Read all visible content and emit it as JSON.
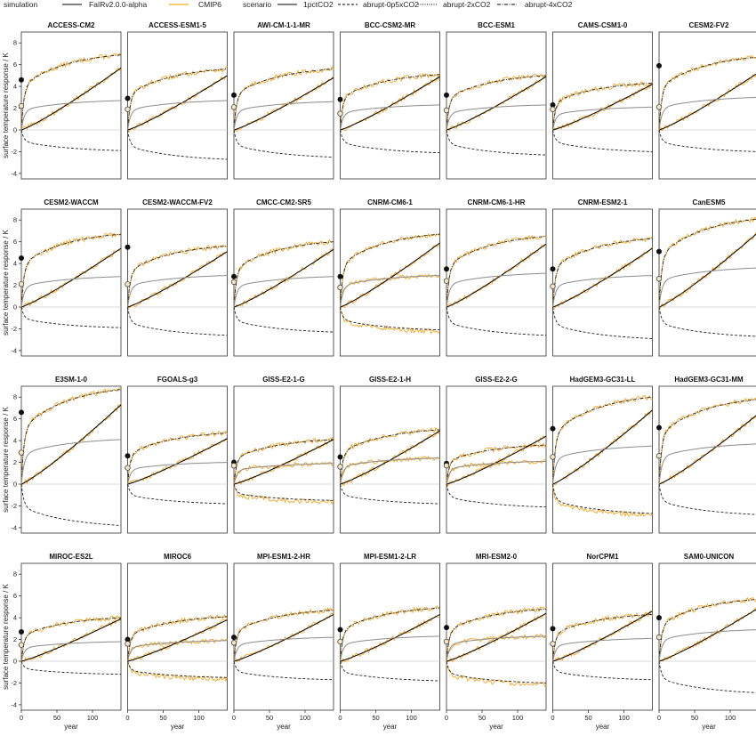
{
  "legend": {
    "simulation_title": "simulation",
    "scenario_title": "scenario",
    "simulation_items": [
      {
        "label": "FaIRv2.0.0-alpha",
        "color": "#000000"
      },
      {
        "label": "CMIP6",
        "color": "#f5a623"
      }
    ],
    "scenario_items": [
      {
        "label": "1pctCO2",
        "dash": "solid"
      },
      {
        "label": "abrupt-0p5xCO2",
        "dash": "dashed"
      },
      {
        "label": "abrupt-2xCO2",
        "dash": "dotted"
      },
      {
        "label": "abrupt-4xCO2",
        "dash": "dotdash"
      }
    ]
  },
  "chart_data": {
    "type": "line",
    "ylabel": "surface temperature response / K",
    "xlabel": "year",
    "xlim": [
      0,
      140
    ],
    "ylim": [
      -4.5,
      9
    ],
    "xticks": [
      0,
      50,
      100
    ],
    "yticks": [
      -4,
      -2,
      0,
      2,
      4,
      6,
      8
    ],
    "colors": {
      "fair": "#000000",
      "cmip6": "#f5a623",
      "twox": "#8c8c8c",
      "zero": "#cccccc"
    },
    "legend_position": "top",
    "panels": [
      {
        "model": "ACCESS-CM2",
        "dot4x": 4.6,
        "dot2x": 2.2,
        "f4x": 6.9,
        "f2x": 2.7,
        "fpct": 5.7,
        "fhalf": -1.9,
        "cmip2x": false,
        "cmiphalf": false
      },
      {
        "model": "ACCESS-ESM1-5",
        "dot4x": 2.9,
        "dot2x": 1.9,
        "f4x": 5.6,
        "f2x": 2.7,
        "fpct": 5.0,
        "fhalf": -2.7,
        "cmip2x": false,
        "cmiphalf": false
      },
      {
        "model": "AWI-CM-1-1-MR",
        "dot4x": 3.2,
        "dot2x": 2.1,
        "f4x": 5.6,
        "f2x": 2.6,
        "fpct": 4.8,
        "fhalf": -2.5,
        "cmip2x": false,
        "cmiphalf": false
      },
      {
        "model": "BCC-CSM2-MR",
        "dot4x": 2.8,
        "dot2x": 1.5,
        "f4x": 5.1,
        "f2x": 2.3,
        "fpct": 4.9,
        "fhalf": -2.1,
        "cmip2x": false,
        "cmiphalf": false
      },
      {
        "model": "BCC-ESM1",
        "dot4x": 3.2,
        "dot2x": 1.8,
        "f4x": 5.0,
        "f2x": 2.3,
        "fpct": 4.9,
        "fhalf": -2.3,
        "cmip2x": false,
        "cmiphalf": false
      },
      {
        "model": "CAMS-CSM1-0",
        "dot4x": 2.3,
        "dot2x": 1.9,
        "f4x": 4.3,
        "f2x": 2.1,
        "fpct": 4.2,
        "fhalf": -2.0,
        "cmip2x": false,
        "cmiphalf": false
      },
      {
        "model": "CESM2-FV2",
        "dot4x": 5.9,
        "dot2x": 2.1,
        "f4x": 6.7,
        "f2x": 3.0,
        "fpct": 5.3,
        "fhalf": -2.0,
        "cmip2x": false,
        "cmiphalf": false
      },
      {
        "model": "CESM2-WACCM",
        "dot4x": 4.5,
        "dot2x": 2.1,
        "f4x": 6.7,
        "f2x": 2.8,
        "fpct": 5.4,
        "fhalf": -1.9,
        "cmip2x": false,
        "cmiphalf": false
      },
      {
        "model": "CESM2-WACCM-FV2",
        "dot4x": 5.5,
        "dot2x": 2.1,
        "f4x": 5.6,
        "f2x": 2.9,
        "fpct": 5.1,
        "fhalf": -2.6,
        "cmip2x": false,
        "cmiphalf": false
      },
      {
        "model": "CMCC-CM2-SR5",
        "dot4x": 2.8,
        "dot2x": 2.3,
        "f4x": 6.0,
        "f2x": 2.8,
        "fpct": 5.3,
        "fhalf": -2.3,
        "cmip2x": false,
        "cmiphalf": false
      },
      {
        "model": "CNRM-CM6-1",
        "dot4x": 2.8,
        "dot2x": 1.8,
        "f4x": 6.7,
        "f2x": 2.9,
        "fpct": 5.9,
        "fhalf": -2.1,
        "cmip2x": true,
        "cmiphalf": true
      },
      {
        "model": "CNRM-CM6-1-HR",
        "dot4x": 3.5,
        "dot2x": 2.4,
        "f4x": 6.5,
        "f2x": 3.1,
        "fpct": 5.8,
        "fhalf": -2.6,
        "cmip2x": false,
        "cmiphalf": false
      },
      {
        "model": "CNRM-ESM2-1",
        "dot4x": 3.5,
        "dot2x": 1.9,
        "f4x": 6.3,
        "f2x": 2.9,
        "fpct": 5.4,
        "fhalf": -2.9,
        "cmip2x": false,
        "cmiphalf": false
      },
      {
        "model": "CanESM5",
        "dot4x": 5.1,
        "dot2x": 2.6,
        "f4x": 8.1,
        "f2x": 3.6,
        "fpct": 6.9,
        "fhalf": -2.7,
        "cmip2x": false,
        "cmiphalf": false
      },
      {
        "model": "E3SM-1-0",
        "dot4x": 6.6,
        "dot2x": 2.9,
        "f4x": 8.7,
        "f2x": 4.1,
        "fpct": 7.3,
        "fhalf": -3.8,
        "cmip2x": false,
        "cmiphalf": false
      },
      {
        "model": "FGOALS-g3",
        "dot4x": 2.6,
        "dot2x": 1.5,
        "f4x": 4.7,
        "f2x": 2.0,
        "fpct": 4.2,
        "fhalf": -1.8,
        "cmip2x": false,
        "cmiphalf": false
      },
      {
        "model": "GISS-E2-1-G",
        "dot4x": 2.0,
        "dot2x": 1.7,
        "f4x": 4.1,
        "f2x": 1.9,
        "fpct": 4.1,
        "fhalf": -1.5,
        "cmip2x": true,
        "cmiphalf": true
      },
      {
        "model": "GISS-E2-1-H",
        "dot4x": 2.5,
        "dot2x": 1.6,
        "f4x": 5.0,
        "f2x": 2.4,
        "fpct": 4.9,
        "fhalf": -1.8,
        "cmip2x": true,
        "cmiphalf": false
      },
      {
        "model": "GISS-E2-2-G",
        "dot4x": 1.9,
        "dot2x": 1.7,
        "f4x": 3.6,
        "f2x": 2.1,
        "fpct": 4.4,
        "fhalf": -2.1,
        "cmip2x": true,
        "cmiphalf": false
      },
      {
        "model": "HadGEM3-GC31-LL",
        "dot4x": 5.1,
        "dot2x": 2.5,
        "f4x": 8.0,
        "f2x": 3.5,
        "fpct": 6.8,
        "fhalf": -2.7,
        "cmip2x": false,
        "cmiphalf": true
      },
      {
        "model": "HadGEM3-GC31-MM",
        "dot4x": 5.2,
        "dot2x": 2.6,
        "f4x": 7.8,
        "f2x": 3.7,
        "fpct": 6.5,
        "fhalf": -2.8,
        "cmip2x": false,
        "cmiphalf": false
      },
      {
        "model": "MIROC-ES2L",
        "dot4x": 2.7,
        "dot2x": 1.5,
        "f4x": 4.0,
        "f2x": 1.8,
        "fpct": 3.9,
        "fhalf": -1.2,
        "cmip2x": false,
        "cmiphalf": false
      },
      {
        "model": "MIROC6",
        "dot4x": 2.0,
        "dot2x": 1.6,
        "f4x": 4.1,
        "f2x": 1.9,
        "fpct": 3.8,
        "fhalf": -1.5,
        "cmip2x": true,
        "cmiphalf": true
      },
      {
        "model": "MPI-ESM1-2-HR",
        "dot4x": 2.2,
        "dot2x": 1.7,
        "f4x": 4.7,
        "f2x": 2.2,
        "fpct": 4.3,
        "fhalf": -1.7,
        "cmip2x": false,
        "cmiphalf": false
      },
      {
        "model": "MPI-ESM1-2-LR",
        "dot4x": 2.9,
        "dot2x": 1.8,
        "f4x": 4.9,
        "f2x": 2.3,
        "fpct": 4.3,
        "fhalf": -1.8,
        "cmip2x": false,
        "cmiphalf": false
      },
      {
        "model": "MRI-ESM2-0",
        "dot4x": 3.1,
        "dot2x": 1.8,
        "f4x": 4.8,
        "f2x": 2.3,
        "fpct": 4.4,
        "fhalf": -2.0,
        "cmip2x": true,
        "cmiphalf": true
      },
      {
        "model": "NorCPM1",
        "dot4x": 3.0,
        "dot2x": 1.6,
        "f4x": 4.3,
        "f2x": 2.1,
        "fpct": 4.6,
        "fhalf": -1.7,
        "cmip2x": false,
        "cmiphalf": false
      },
      {
        "model": "SAM0-UNICON",
        "dot4x": 4.0,
        "dot2x": 2.2,
        "f4x": 5.7,
        "f2x": 2.9,
        "fpct": 4.9,
        "fhalf": -2.9,
        "cmip2x": false,
        "cmiphalf": false
      }
    ]
  }
}
